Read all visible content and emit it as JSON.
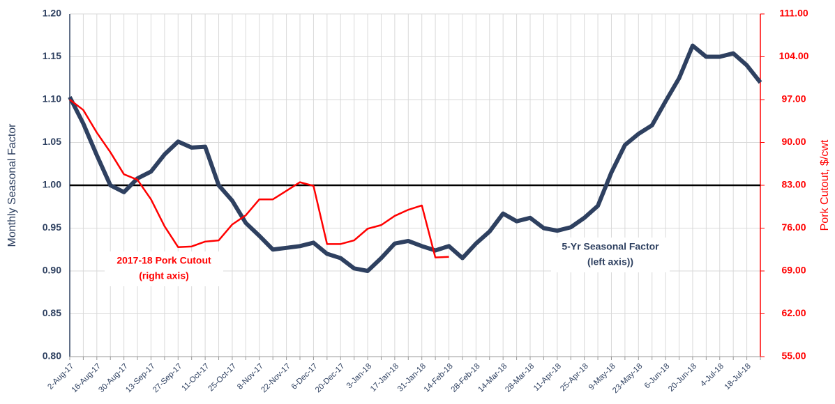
{
  "chart_data": {
    "type": "line",
    "categories": [
      "2-Aug-17",
      null,
      "16-Aug-17",
      null,
      "30-Aug-17",
      null,
      "13-Sep-17",
      null,
      "27-Sep-17",
      null,
      "11-Oct-17",
      null,
      "25-Oct-17",
      null,
      "8-Nov-17",
      null,
      "22-Nov-17",
      null,
      "6-Dec-17",
      null,
      "20-Dec-17",
      null,
      "3-Jan-18",
      null,
      "17-Jan-18",
      null,
      "31-Jan-18",
      null,
      "14-Feb-18",
      null,
      "28-Feb-18",
      null,
      "14-Mar-18",
      null,
      "28-Mar-18",
      null,
      "11-Apr-18",
      null,
      "25-Apr-18",
      null,
      "9-May-18",
      null,
      "23-May-18",
      null,
      "6-Jun-18",
      null,
      "20-Jun-18",
      null,
      "4-Jul-18",
      null,
      "18-Jul-18",
      null
    ],
    "series": [
      {
        "name": "5-Yr Seasonal Factor",
        "color": "#2e4060",
        "axis": "y",
        "values": [
          1.103,
          1.072,
          1.035,
          1.0,
          0.992,
          1.008,
          1.016,
          1.036,
          1.051,
          1.044,
          1.045,
          1.0,
          0.982,
          0.956,
          0.941,
          0.925,
          0.927,
          0.929,
          0.933,
          0.92,
          0.915,
          0.903,
          0.9,
          0.915,
          0.932,
          0.935,
          0.929,
          0.924,
          0.929,
          0.915,
          0.932,
          0.946,
          0.967,
          0.958,
          0.962,
          0.95,
          0.947,
          0.951,
          0.962,
          0.976,
          1.015,
          1.047,
          1.06,
          1.07,
          1.098,
          1.125,
          1.163,
          1.15,
          1.15,
          1.154,
          1.14,
          1.12
        ]
      },
      {
        "name": "2017-18 Pork Cutout",
        "color": "#ff0000",
        "axis": "y2",
        "values": [
          97.0,
          95.3,
          91.6,
          88.4,
          84.8,
          83.9,
          80.7,
          76.3,
          72.9,
          73.0,
          73.8,
          74.0,
          76.6,
          78.1,
          80.7,
          80.7,
          82.1,
          83.5,
          82.9,
          73.4,
          73.4,
          74.0,
          75.9,
          76.5,
          78.0,
          79.0,
          79.7,
          71.2,
          71.3,
          null,
          null,
          null,
          null,
          null,
          null,
          null,
          null,
          null,
          null,
          null,
          null,
          null,
          null,
          null,
          null,
          null,
          null,
          null,
          null,
          null,
          null,
          null
        ]
      }
    ],
    "ylabel": "Monthly Seasonal Factor",
    "y2label": "Pork Cutout, $/cwt",
    "ylim": [
      0.8,
      1.2
    ],
    "yticks": [
      {
        "value": 0.8,
        "label": "0.80"
      },
      {
        "value": 0.85,
        "label": "0.85"
      },
      {
        "value": 0.9,
        "label": "0.90"
      },
      {
        "value": 0.95,
        "label": "0.95"
      },
      {
        "value": 1.0,
        "label": "1.00"
      },
      {
        "value": 1.05,
        "label": "1.05"
      },
      {
        "value": 1.1,
        "label": "1.10"
      },
      {
        "value": 1.15,
        "label": "1.15"
      },
      {
        "value": 1.2,
        "label": "1.20"
      }
    ],
    "y2lim": [
      55,
      111
    ],
    "y2ticks": [
      {
        "value": 55,
        "label": "55.00"
      },
      {
        "value": 62,
        "label": "62.00"
      },
      {
        "value": 69,
        "label": "69.00"
      },
      {
        "value": 76,
        "label": "76.00"
      },
      {
        "value": 83,
        "label": "83.00"
      },
      {
        "value": 90,
        "label": "90.00"
      },
      {
        "value": 97,
        "label": "97.00"
      },
      {
        "value": 104,
        "label": "104.00"
      },
      {
        "value": 111,
        "label": "111.00"
      }
    ],
    "reference_line": 1.0,
    "annotations": [
      {
        "lines": [
          "2017-18 Pork Cutout",
          "(right axis)"
        ],
        "color": "#ff0000"
      },
      {
        "lines": [
          "5-Yr Seasonal Factor",
          "(left axis))"
        ],
        "color": "#2e4060"
      }
    ],
    "grid": true
  }
}
